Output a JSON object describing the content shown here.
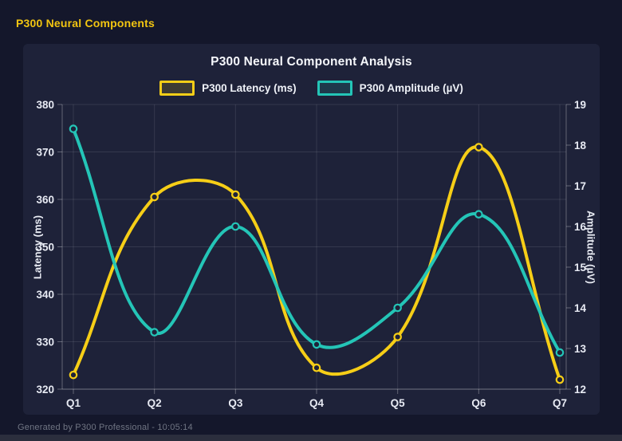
{
  "header": {
    "title": "P300 Neural Components",
    "accent_color": "#f2c511"
  },
  "chart": {
    "title": "P300 Neural Component Analysis",
    "colors": {
      "card_background": "#1e2239",
      "page_background": "#14172b",
      "grid": "rgba(255,255,255,0.10)",
      "axis_border": "rgba(255,255,255,0.30)",
      "tick_text": "#e7eaf3",
      "title_text": "#f5f7fb"
    }
  },
  "chart_data": {
    "type": "line",
    "title": "P300 Neural Component Analysis",
    "categories": [
      "Q1",
      "Q2",
      "Q3",
      "Q4",
      "Q5",
      "Q6",
      "Q7"
    ],
    "series": [
      {
        "name": "P300 Latency (ms)",
        "axis": "left",
        "color": "#f6ce17",
        "values": [
          323,
          360.5,
          361,
          324.5,
          331,
          371,
          322
        ]
      },
      {
        "name": "P300 Amplitude (µV)",
        "axis": "right",
        "color": "#24c5b7",
        "values": [
          18.4,
          13.4,
          16.0,
          13.1,
          14.0,
          16.3,
          12.9
        ]
      }
    ],
    "left_axis": {
      "label": "Latency (ms)",
      "min": 320,
      "max": 380,
      "step": 10
    },
    "right_axis": {
      "label": "Amplitude (µV)",
      "min": 12,
      "max": 19,
      "step": 1
    },
    "grid": true,
    "legend_position": "top",
    "line_tension": 0.4
  },
  "footer": {
    "text": "Generated by P300 Professional - 10:05:14"
  }
}
